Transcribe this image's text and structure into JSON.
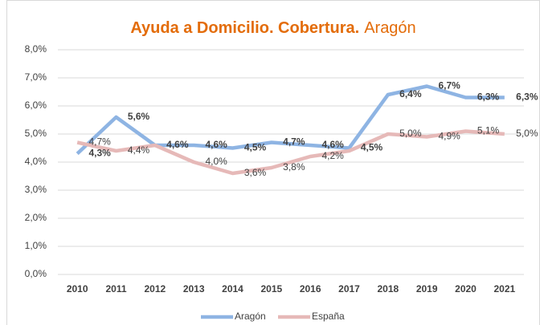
{
  "chart_data": {
    "type": "line",
    "title": "Ayuda a Domicilio. Cobertura.",
    "subtitle": "Aragón",
    "categories": [
      "2010",
      "2011",
      "2012",
      "2013",
      "2014",
      "2015",
      "2016",
      "2017",
      "2018",
      "2019",
      "2020",
      "2021"
    ],
    "series": [
      {
        "name": "Aragón",
        "color": "#8eb4e3",
        "values": [
          4.3,
          5.6,
          4.6,
          4.6,
          4.5,
          4.7,
          4.6,
          4.5,
          6.4,
          6.7,
          6.3,
          6.3
        ],
        "value_labels": [
          "4,3%",
          "5,6%",
          "4,6%",
          "4,6%",
          "4,5%",
          "4,7%",
          "4,6%",
          "4,5%",
          "6,4%",
          "6,7%",
          "6,3%",
          "6,3%"
        ]
      },
      {
        "name": "España",
        "color": "#e6b9b8",
        "values": [
          4.7,
          4.4,
          4.6,
          4.0,
          3.6,
          3.8,
          4.2,
          4.4,
          5.0,
          4.9,
          5.1,
          5.0
        ],
        "value_labels": [
          "4,7%",
          "4,4%",
          null,
          "4,0%",
          "3,6%",
          "3,8%",
          "4,2%",
          null,
          "5,0%",
          "4,9%",
          "5,1%",
          "5,0%"
        ]
      }
    ],
    "ylim": [
      0,
      8
    ],
    "yticks": [
      {
        "value": 0,
        "label": "0,0%"
      },
      {
        "value": 1,
        "label": "1,0%"
      },
      {
        "value": 2,
        "label": "2,0%"
      },
      {
        "value": 3,
        "label": "3,0%"
      },
      {
        "value": 4,
        "label": "4,0%"
      },
      {
        "value": 5,
        "label": "5,0%"
      },
      {
        "value": 6,
        "label": "6,0%"
      },
      {
        "value": 7,
        "label": "7,0%"
      },
      {
        "value": 8,
        "label": "8,0%"
      }
    ],
    "grid": true,
    "legend": "bottom"
  }
}
